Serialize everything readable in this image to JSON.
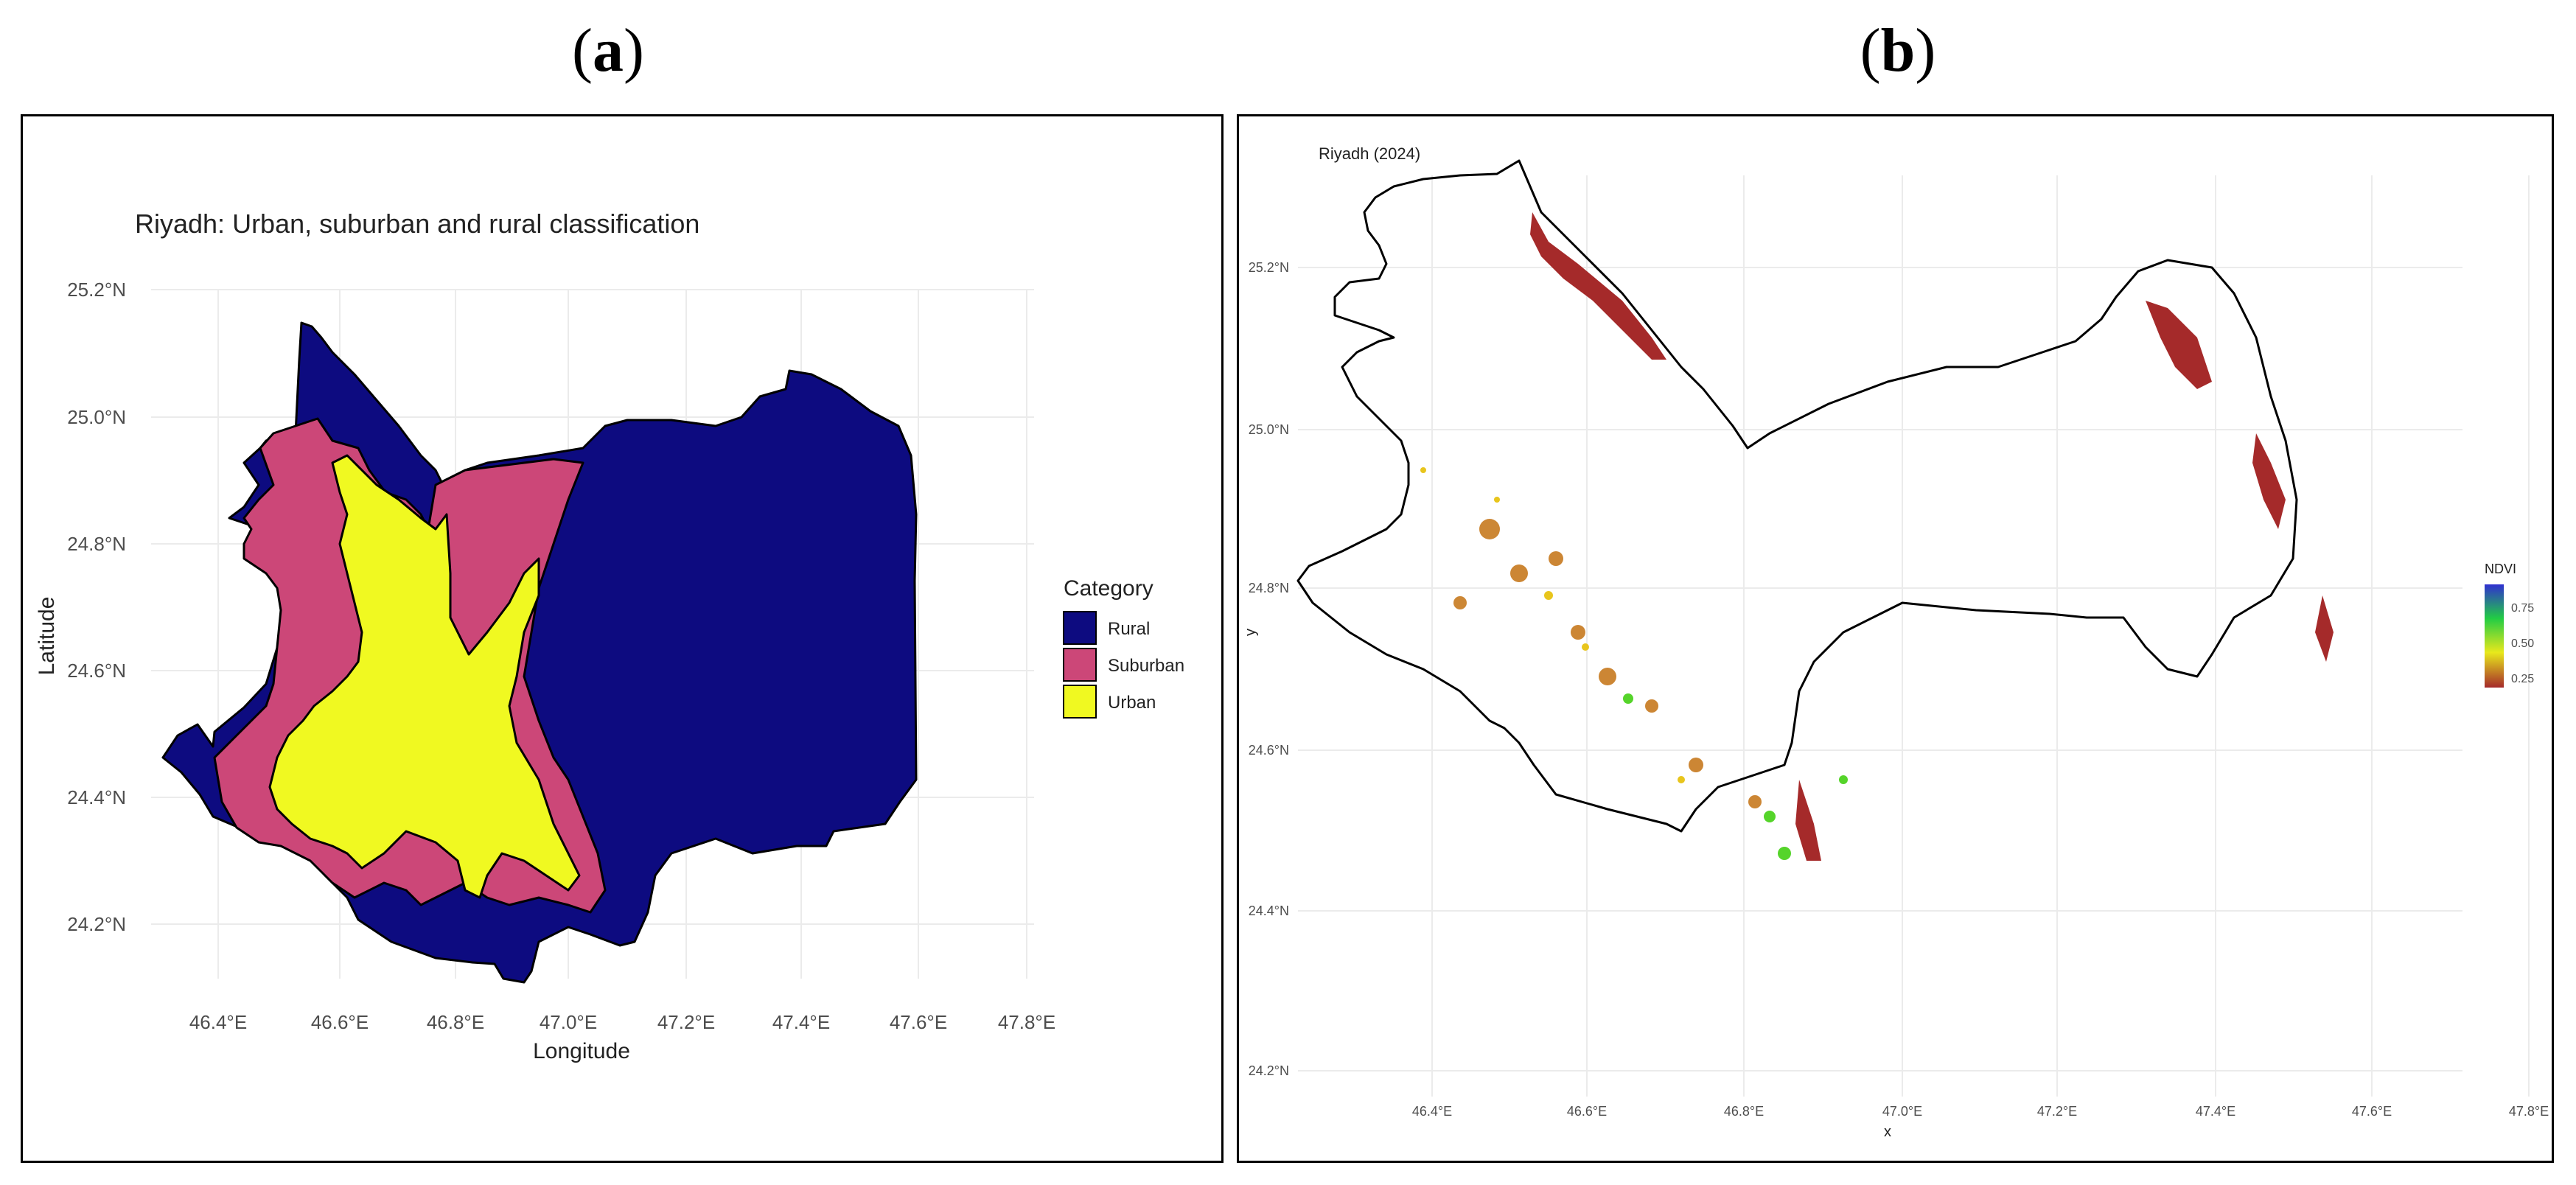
{
  "labels": {
    "a": "a",
    "b": "b"
  },
  "panel_a": {
    "title": "Riyadh: Urban, suburban and rural classification",
    "xlabel": "Longitude",
    "ylabel": "Latitude",
    "xticks": [
      "46.4°E",
      "46.6°E",
      "46.8°E",
      "47.0°E",
      "47.2°E",
      "47.4°E",
      "47.6°E",
      "47.8°E"
    ],
    "yticks": [
      "25.2°N",
      "25.0°N",
      "24.8°N",
      "24.6°N",
      "24.4°N",
      "24.2°N"
    ],
    "legend": {
      "title": "Category",
      "items": [
        {
          "label": "Rural",
          "color": "#0d0b80"
        },
        {
          "label": "Suburban",
          "color": "#cc4778"
        },
        {
          "label": "Urban",
          "color": "#f0f921"
        }
      ]
    }
  },
  "panel_b": {
    "title": "Riyadh (2024)",
    "xlabel": "x",
    "ylabel": "y",
    "xticks": [
      "46.4°E",
      "46.6°E",
      "46.8°E",
      "47.0°E",
      "47.2°E",
      "47.4°E",
      "47.6°E",
      "47.8°E"
    ],
    "yticks": [
      "25.2°N",
      "25.0°N",
      "24.8°N",
      "24.6°N",
      "24.4°N",
      "24.2°N"
    ],
    "legend": {
      "title": "NDVI",
      "ticks": [
        "0.75",
        "0.50",
        "0.25"
      ],
      "colors": [
        "#3030d0",
        "#22cc44",
        "#e8e81c",
        "#a52a2a"
      ]
    }
  }
}
